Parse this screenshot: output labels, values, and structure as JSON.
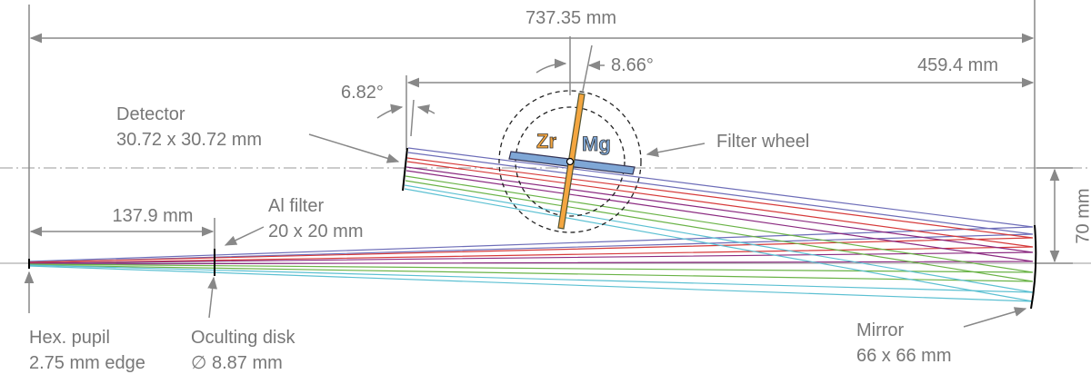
{
  "dimensions": {
    "total_length": "737.35 mm",
    "wheel_angle": "8.66°",
    "wheel_to_mirror": "459.4 mm",
    "detector_angle": "6.82°",
    "pupil_to_filter": "137.9 mm",
    "axis_offset": "70 mm"
  },
  "labels": {
    "detector": {
      "name": "Detector",
      "size": "30.72 x 30.72 mm"
    },
    "filter_wheel": "Filter wheel",
    "filter_zr": "Zr",
    "filter_mg": "Mg",
    "al_filter": {
      "name": "Al filter",
      "size": "20 x 20 mm"
    },
    "pupil": {
      "name": "Hex. pupil",
      "size": "2.75 mm edge"
    },
    "occulting_disk": {
      "name": "Oculting disk",
      "size": "∅ 8.87 mm"
    },
    "mirror": {
      "name": "Mirror",
      "size": "66 x 66 mm"
    }
  }
}
